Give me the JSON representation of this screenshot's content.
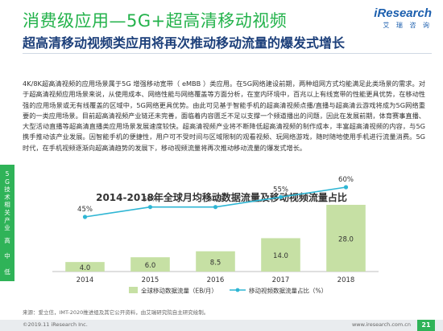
{
  "header": {
    "title": "消费级应用—5G+超高清移动视频",
    "subtitle": "超高清移动视频类应用将再次推动移动流量的爆发式增长",
    "logo_main": "iResearch",
    "logo_sub": "艾 瑞 咨 询"
  },
  "body_text": "4K/8K超高清视频的应用场景属于5G 增强移动宽带（ eMBB ）类应用。在5G网络建设前期，两种组网方式均能满足此类场景的需求。对于超高清视频应用场景来说，从使用成本、网络性能与网络覆盖等方面分析，在室内环境中，百兆以上有线宽带的性能更具优势，在移动性强的应用场景或无有线覆盖的区域中，5G网络更具优势。由此可见基于智能手机的超高清视频点播/直播与超高清云游戏将成为5G网络重要的一类应用场景。目前超高清视频产业链还未完善，面临着内容匮乏不足以支撑一个频道播出的问题，因此在发展前期，体育赛事直播、大型活动直播等超高清直播类应用场景发展速度较快。超高清视频产业将不断降低超高清视频的制作成本，丰富超高清视频的内容，与5G携手推动该产业发展。因智能手机的便捷性，用户可不受时间与区域限制的观看视频、玩网络游戏，随时随地使用手机进行流量消费。5G时代，在手机视频逐渐向超高清趋势的发展下，移动视频流量将再次推动移动流量的爆发式增长。",
  "side_tab": {
    "label": "5G技术相关产业",
    "segments": [
      "高",
      "中",
      "低"
    ]
  },
  "chart_title": "2014-2018年全球月均移动数据流量及移动视频流量占比",
  "chart_data": {
    "type": "bar",
    "categories": [
      "2014",
      "2015",
      "2016",
      "2017",
      "2018"
    ],
    "series": [
      {
        "name": "全球移动数据流量（EB/月）",
        "type": "bar",
        "values": [
          4.0,
          6.0,
          8.5,
          14.0,
          28.0
        ],
        "labels": [
          "4.0",
          "6.0",
          "8.5",
          "14.0",
          "28.0"
        ]
      },
      {
        "name": "移动视频数据流量占比（%）",
        "type": "line",
        "values": [
          45,
          50,
          50,
          55,
          60
        ],
        "labels": [
          "45%",
          "50%",
          "50%",
          "55%",
          "60%"
        ]
      }
    ],
    "colors": {
      "bar": "#c6e0a4",
      "bar_top": "#a8d08a",
      "line": "#2fb6d4"
    }
  },
  "footer": {
    "source": "来源：爱立信，IMT-2020推进组及其它公开资料，由艾瑞研究院自主研究绘制。",
    "copyright": "©2019.11 iResearch Inc.",
    "website": "www.iresearch.com.cn",
    "page": "21"
  }
}
